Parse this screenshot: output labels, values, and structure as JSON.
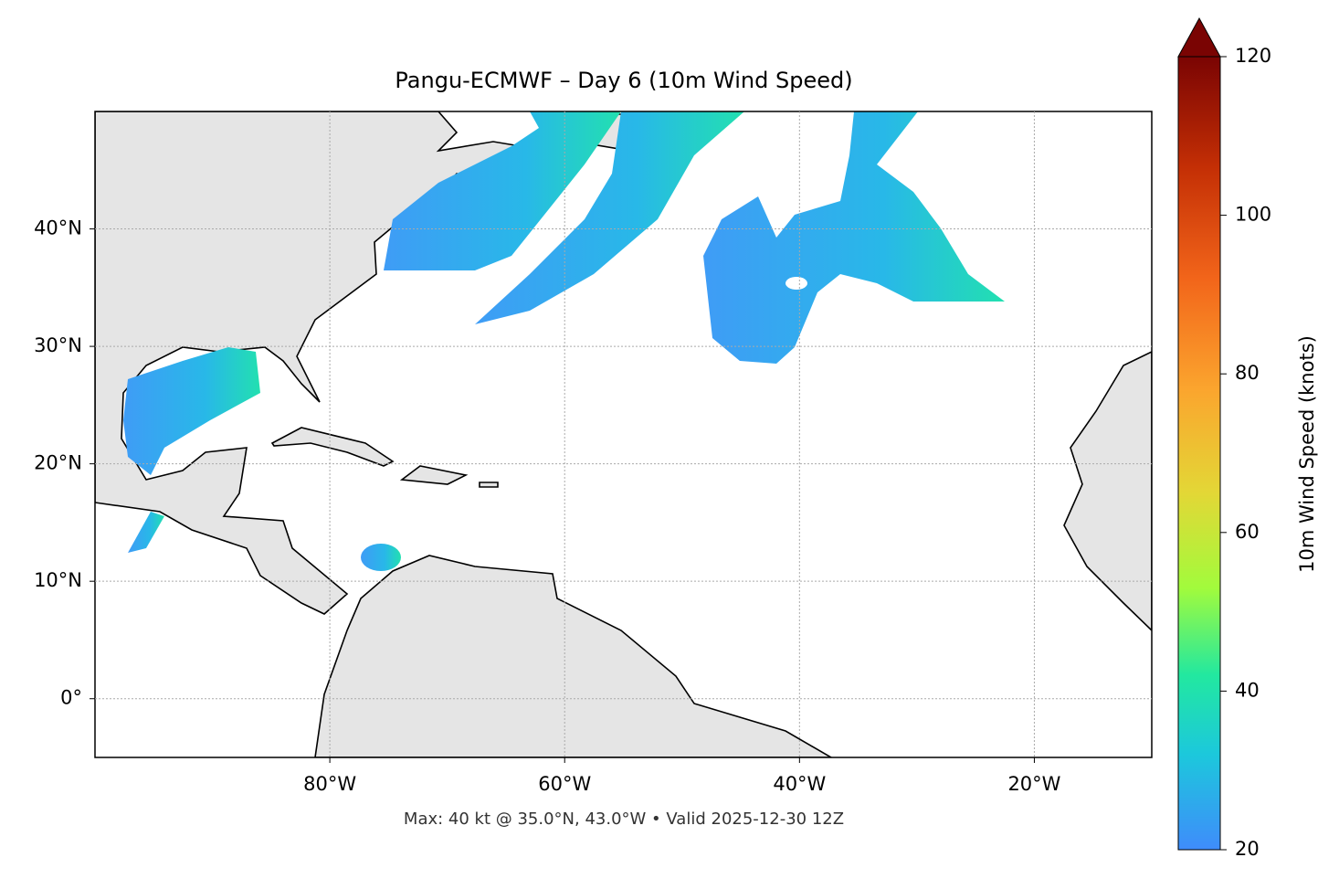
{
  "chart_data": {
    "type": "map",
    "title": "Pangu-ECMWF – Day 6 (10m Wind Speed)",
    "footnote": "Max: 40 kt @ 35.0°N, 43.0°W • Valid 2025-12-30 12Z",
    "xlim": [
      -100,
      -10
    ],
    "ylim": [
      -5,
      50
    ],
    "xticks": [
      {
        "value": -80,
        "label": "80°W"
      },
      {
        "value": -60,
        "label": "60°W"
      },
      {
        "value": -40,
        "label": "40°W"
      },
      {
        "value": -20,
        "label": "20°W"
      }
    ],
    "yticks": [
      {
        "value": 0,
        "label": "0°"
      },
      {
        "value": 10,
        "label": "10°N"
      },
      {
        "value": 20,
        "label": "20°N"
      },
      {
        "value": 30,
        "label": "30°N"
      },
      {
        "value": 40,
        "label": "40°N"
      }
    ],
    "grid": true,
    "colorbar": {
      "label": "10m Wind Speed (knots)",
      "lim": [
        20,
        120
      ],
      "ticks": [
        20,
        40,
        60,
        80,
        100,
        120
      ],
      "extend": "max"
    }
  }
}
